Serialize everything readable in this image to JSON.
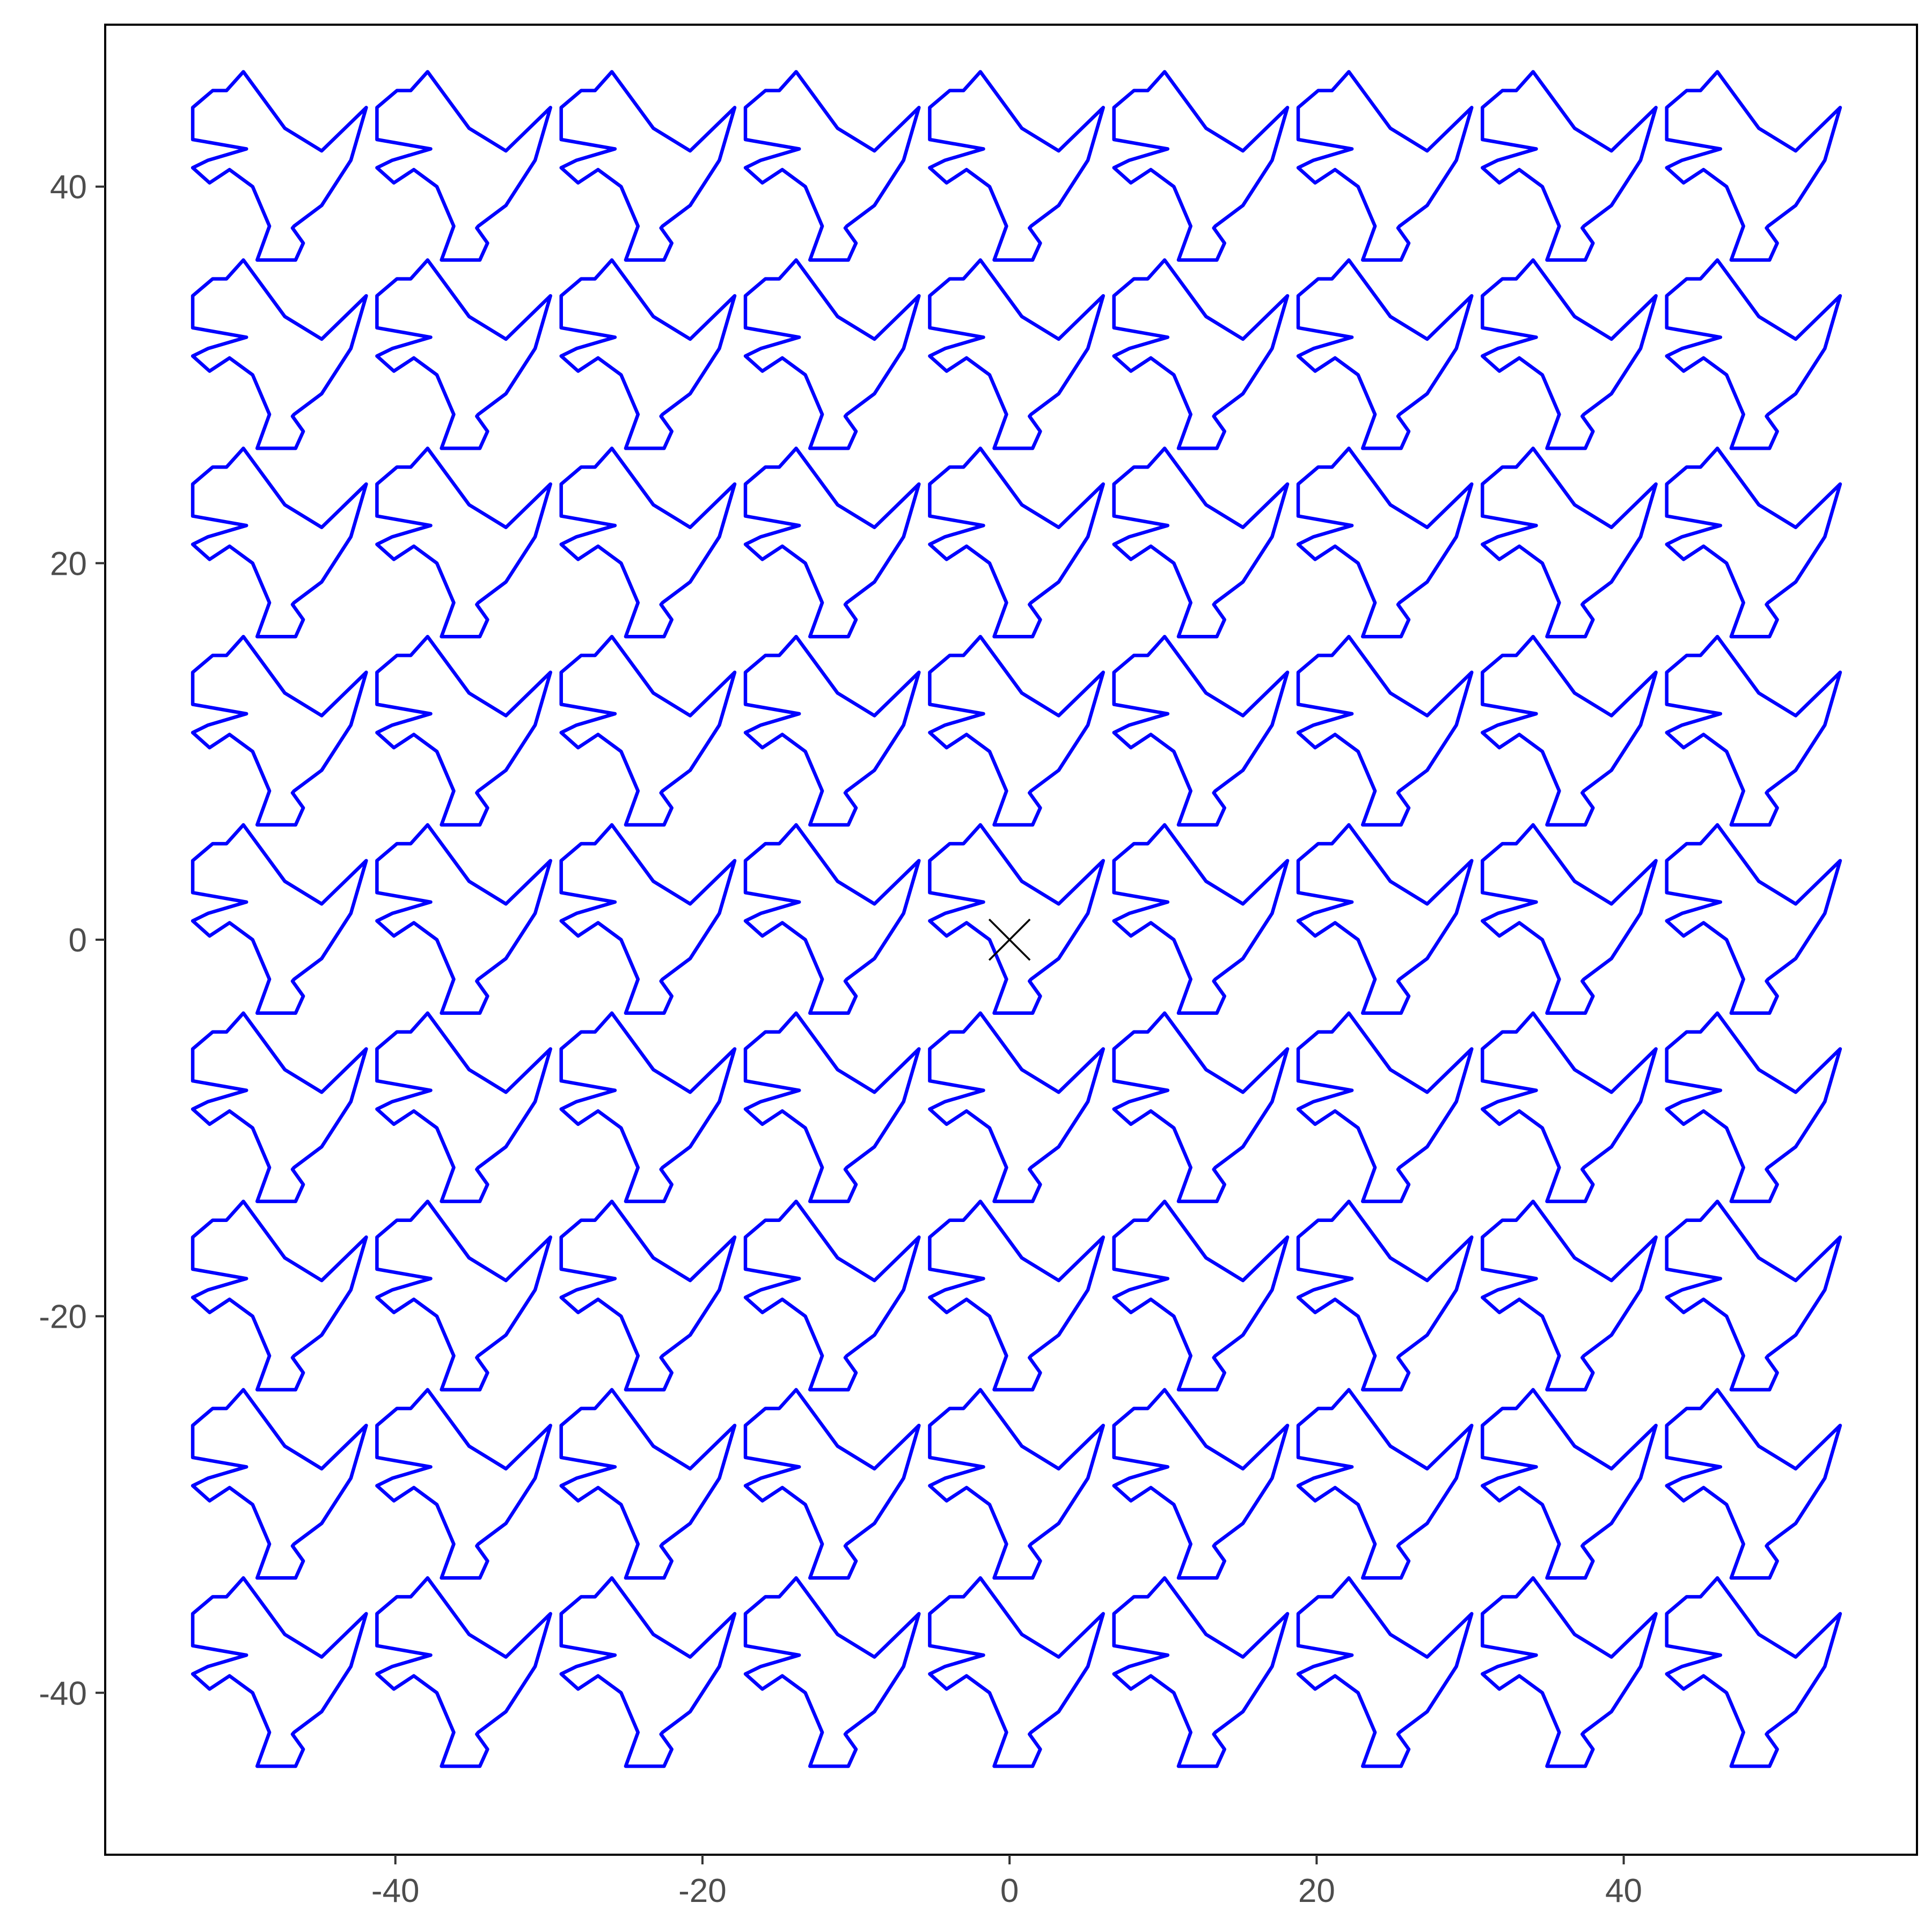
{
  "colors": {
    "series": "#0000ff",
    "marker": "#000000",
    "tick_text": "#4d4d4d",
    "tick_mark": "#333333",
    "border": "#000000",
    "background": "#ffffff"
  },
  "chart_data": {
    "type": "line",
    "title": "",
    "xlabel": "",
    "ylabel": "",
    "xlim": [
      -58.9,
      59.1
    ],
    "ylim": [
      -48.6,
      48.6
    ],
    "grid": false,
    "legend": "none",
    "x_ticks": [
      -40,
      -20,
      0,
      20,
      40
    ],
    "y_ticks": [
      -40,
      -20,
      0,
      20,
      40
    ],
    "x_tick_labels": [
      "-40",
      "-20",
      "0",
      "20",
      "40"
    ],
    "y_tick_labels": [
      "-40",
      "-20",
      "0",
      "20",
      "40"
    ],
    "shape_outline": {
      "x": [
        -5.2,
        -3.9,
        -3.0,
        -1.9,
        0.8,
        3.2,
        6.1,
        5.1,
        3.2,
        1.4,
        1.3,
        2.0,
        1.5,
        -1.0,
        -0.2,
        -1.3,
        -2.8,
        -4.1,
        -5.2,
        -4.2,
        -1.7,
        -5.2,
        -5.2
      ],
      "y": [
        4.2,
        5.1,
        5.1,
        6.1,
        3.1,
        1.9,
        4.2,
        1.4,
        -1.0,
        -2.1,
        -2.2,
        -3.0,
        -3.9,
        -3.9,
        -2.1,
        0.0,
        0.9,
        0.2,
        1.0,
        1.4,
        2.0,
        2.5,
        4.2
      ]
    },
    "tiling": {
      "x_offsets": [
        -48,
        -36,
        -24,
        -12,
        0,
        12,
        24,
        36,
        48
      ],
      "y_offsets": [
        40,
        30,
        20,
        10,
        0,
        -10,
        -20,
        -30,
        -40
      ]
    },
    "marker": {
      "shape": "x",
      "x": 0,
      "y": 0
    }
  }
}
